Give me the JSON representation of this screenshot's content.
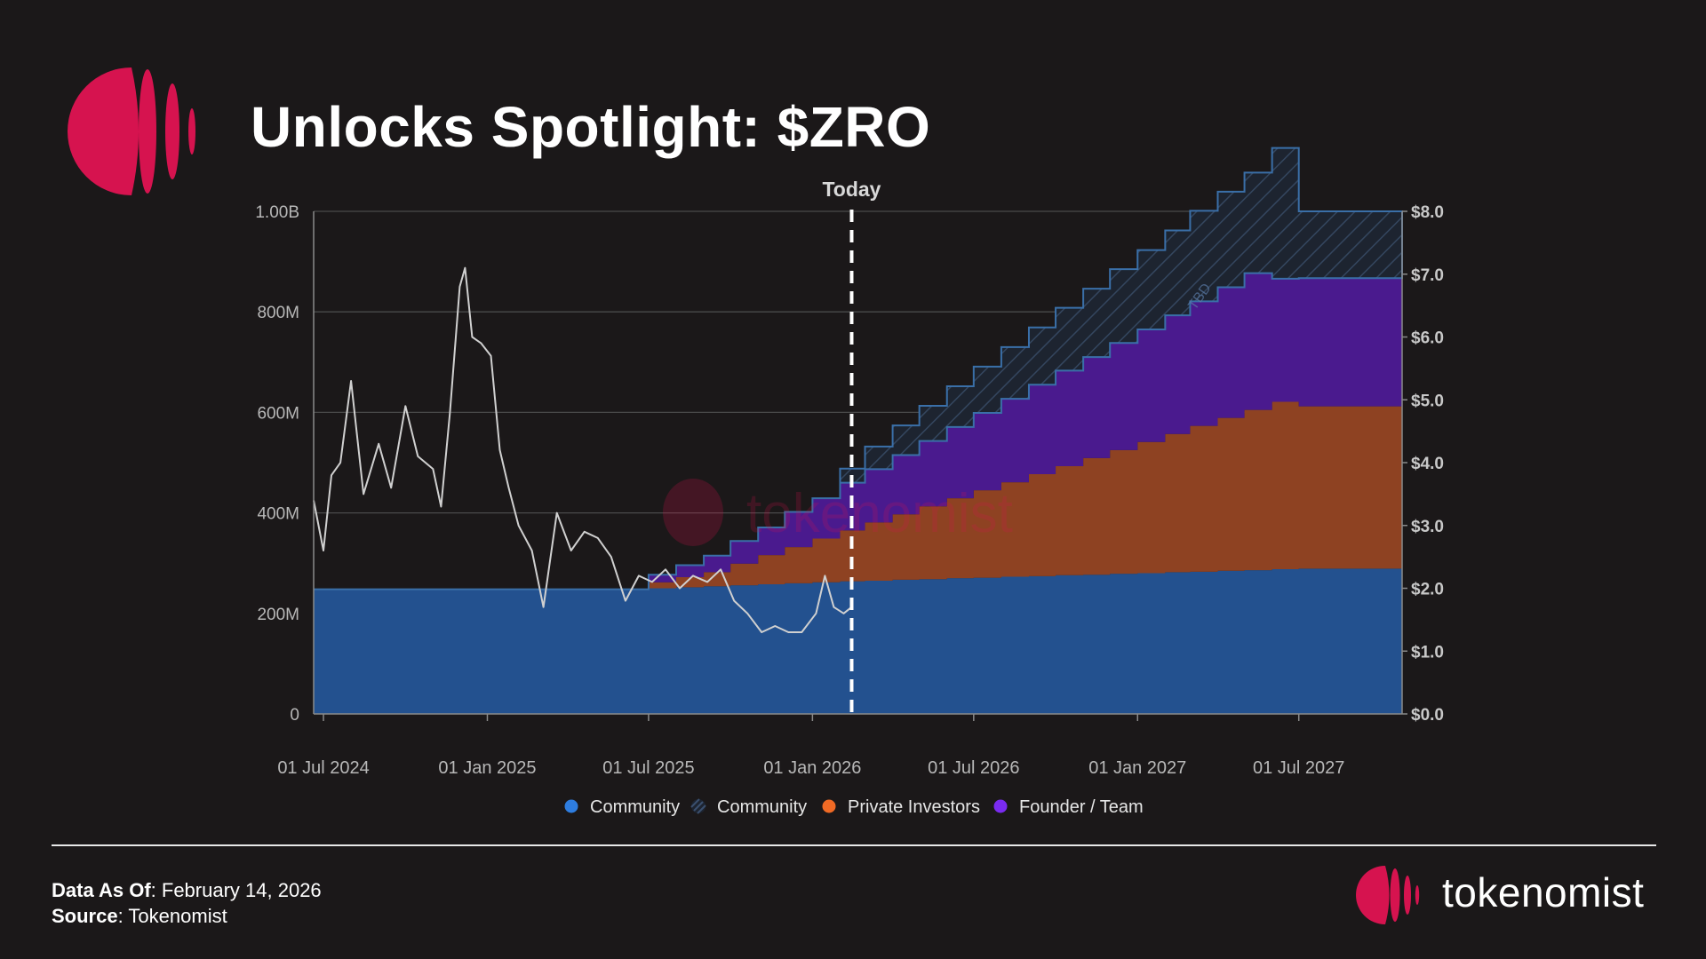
{
  "header": {
    "title": "Unlocks Spotlight: $ZRO"
  },
  "colors": {
    "background": "#1b1819",
    "brand": "#d6134f",
    "community": "#23518f",
    "community_pattern": "#2a3a52",
    "private_investors": "#8e4222",
    "founder_team": "#4a1a8e",
    "price_line": "#d0d0d0"
  },
  "chart_data": {
    "type": "area",
    "title": "",
    "today_label": "Today",
    "tbd_label": "TBD",
    "watermark": "tokenomist",
    "x_ticks": [
      "01 Jul 2024",
      "01 Jan 2025",
      "01 Jul 2025",
      "01 Jan 2026",
      "01 Jul 2026",
      "01 Jan 2027",
      "01 Jul 2027"
    ],
    "x_range": [
      "2024-06-20",
      "2027-10-25"
    ],
    "today": "2026-02-14",
    "y_left_ticks": [
      "0",
      "200M",
      "400M",
      "600M",
      "800M",
      "1.00B"
    ],
    "y_left_range": [
      0,
      1000000000
    ],
    "y_right_ticks": [
      "$0.0",
      "$1.0",
      "$2.0",
      "$3.0",
      "$4.0",
      "$5.0",
      "$6.0",
      "$7.0",
      "$8.0"
    ],
    "y_right_range": [
      0,
      8
    ],
    "legend": [
      {
        "label": "Community",
        "marker": "dot",
        "color": "#2e7de0"
      },
      {
        "label": "Community",
        "marker": "hatch",
        "color": "#3a4f6e"
      },
      {
        "label": "Private Investors",
        "marker": "dot",
        "color": "#f06a25"
      },
      {
        "label": "Founder / Team",
        "marker": "dot",
        "color": "#7a2bf0"
      }
    ],
    "unlock_series_M": {
      "months": [
        "2024-06",
        "2024-07",
        "2024-08",
        "2024-09",
        "2024-10",
        "2024-11",
        "2024-12",
        "2025-01",
        "2025-02",
        "2025-03",
        "2025-04",
        "2025-05",
        "2025-06",
        "2025-07",
        "2025-08",
        "2025-09",
        "2025-10",
        "2025-11",
        "2025-12",
        "2026-01",
        "2026-02",
        "2026-03",
        "2026-04",
        "2026-05",
        "2026-06",
        "2026-07",
        "2026-08",
        "2026-09",
        "2026-10",
        "2026-11",
        "2026-12",
        "2027-01",
        "2027-02",
        "2027-03",
        "2027-04",
        "2027-05",
        "2027-06",
        "2027-07",
        "2027-08",
        "2027-09",
        "2027-10"
      ],
      "community": [
        248,
        248,
        248,
        248,
        248,
        248,
        248,
        248,
        248,
        248,
        248,
        248,
        248,
        250,
        252,
        254,
        256,
        258,
        260,
        262,
        264,
        265,
        267,
        268,
        270,
        271,
        273,
        274,
        276,
        277,
        279,
        280,
        282,
        283,
        285,
        286,
        288,
        289,
        289,
        289,
        289
      ],
      "private_investors": [
        0,
        0,
        0,
        0,
        0,
        0,
        0,
        0,
        0,
        0,
        0,
        0,
        0,
        12,
        20,
        28,
        43,
        58,
        72,
        87,
        101,
        116,
        130,
        145,
        159,
        174,
        188,
        203,
        217,
        232,
        246,
        261,
        275,
        290,
        304,
        319,
        333,
        323,
        323,
        323,
        323
      ],
      "founder_team": [
        0,
        0,
        0,
        0,
        0,
        0,
        0,
        0,
        0,
        0,
        0,
        0,
        0,
        15,
        24,
        33,
        45,
        55,
        70,
        80,
        95,
        106,
        118,
        130,
        142,
        154,
        166,
        178,
        190,
        201,
        213,
        224,
        236,
        248,
        260,
        272,
        245,
        255,
        255,
        255,
        255
      ],
      "community_tbd": [
        0,
        0,
        0,
        0,
        0,
        0,
        0,
        0,
        0,
        0,
        0,
        0,
        0,
        0,
        0,
        0,
        0,
        0,
        0,
        0,
        28,
        45,
        59,
        70,
        81,
        92,
        103,
        114,
        125,
        136,
        147,
        158,
        169,
        180,
        190,
        200,
        260,
        133,
        133,
        133,
        133
      ]
    },
    "price_series": {
      "dates": [
        "2024-06-20",
        "2024-07-01",
        "2024-07-10",
        "2024-07-20",
        "2024-08-01",
        "2024-08-15",
        "2024-09-01",
        "2024-09-15",
        "2024-10-01",
        "2024-10-15",
        "2024-11-01",
        "2024-11-10",
        "2024-11-20",
        "2024-12-01",
        "2024-12-07",
        "2024-12-15",
        "2024-12-25",
        "2025-01-05",
        "2025-01-15",
        "2025-01-25",
        "2025-02-05",
        "2025-02-20",
        "2025-03-05",
        "2025-03-20",
        "2025-04-05",
        "2025-04-20",
        "2025-05-05",
        "2025-05-20",
        "2025-06-05",
        "2025-06-20",
        "2025-07-05",
        "2025-07-20",
        "2025-08-05",
        "2025-08-20",
        "2025-09-05",
        "2025-09-20",
        "2025-10-05",
        "2025-10-20",
        "2025-11-05",
        "2025-11-20",
        "2025-12-05",
        "2025-12-20",
        "2026-01-05",
        "2026-01-15",
        "2026-01-25",
        "2026-02-05",
        "2026-02-14"
      ],
      "prices": [
        3.4,
        2.6,
        3.8,
        4.0,
        5.3,
        3.5,
        4.3,
        3.6,
        4.9,
        4.1,
        3.9,
        3.3,
        4.8,
        6.8,
        7.1,
        6.0,
        5.9,
        5.7,
        4.2,
        3.6,
        3.0,
        2.6,
        1.7,
        3.2,
        2.6,
        2.9,
        2.8,
        2.5,
        1.8,
        2.2,
        2.1,
        2.3,
        2.0,
        2.2,
        2.1,
        2.3,
        1.8,
        1.6,
        1.3,
        1.4,
        1.3,
        1.3,
        1.6,
        2.2,
        1.7,
        1.6,
        1.7
      ]
    }
  },
  "footer": {
    "as_of_label": "Data As Of",
    "as_of_value": ": February 14, 2026",
    "source_label": "Source",
    "source_value": ": Tokenomist",
    "brand_name": "tokenomist"
  }
}
